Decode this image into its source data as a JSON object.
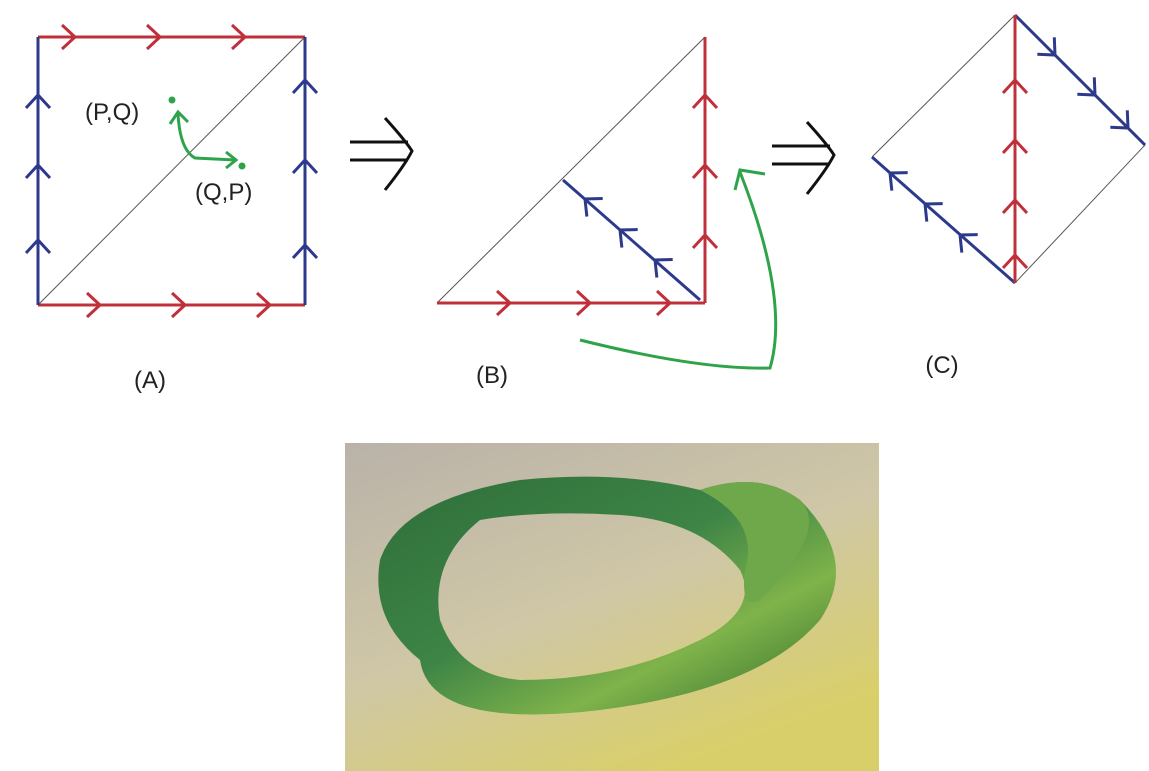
{
  "panels": [
    {
      "caption": "(A)"
    },
    {
      "caption": "(B)"
    },
    {
      "caption": "(C)"
    }
  ],
  "points": [
    {
      "label": "(P,Q)"
    },
    {
      "label": "(Q,P)"
    }
  ]
}
